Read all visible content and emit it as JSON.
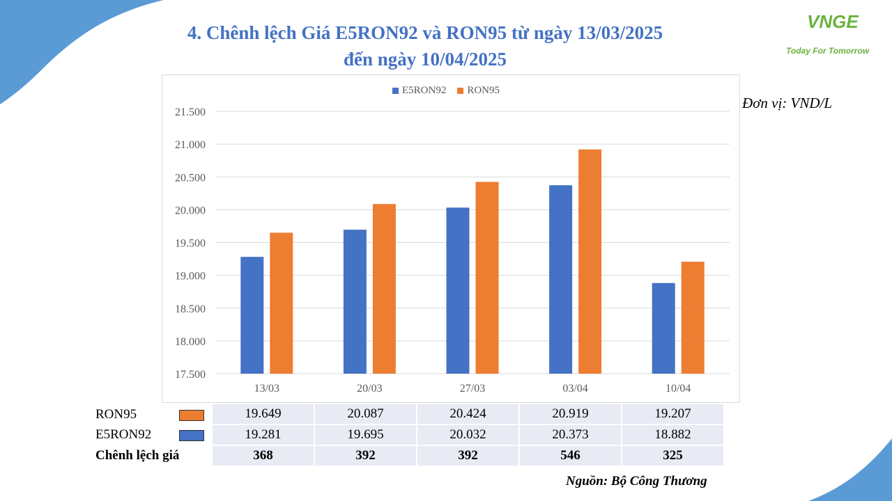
{
  "title": {
    "line1": "4. Chênh lệch Giá E5RON92 và RON95 từ ngày 13/03/2025",
    "line2": "đến ngày 10/04/2025"
  },
  "logo": {
    "mark": "VNGE",
    "tagline": "Today For Tomorrow"
  },
  "unit": "Đơn vị: VND/L",
  "source": "Nguồn: Bộ Công Thương",
  "colors": {
    "accent": "#4472c4",
    "e5": "#4472c4",
    "ron95": "#ed7d31",
    "logo": "#6ab33e",
    "deco": "#5b9bd5"
  },
  "chart_data": {
    "type": "bar",
    "categories": [
      "13/03",
      "20/03",
      "27/03",
      "03/04",
      "10/04"
    ],
    "series": [
      {
        "name": "E5RON92",
        "color": "#4472c4",
        "values": [
          19281,
          19695,
          20032,
          20373,
          18882
        ]
      },
      {
        "name": "RON95",
        "color": "#ed7d31",
        "values": [
          19649,
          20087,
          20424,
          20919,
          19207
        ]
      }
    ],
    "ylim": [
      17500,
      21500
    ],
    "yticks": [
      "17.500",
      "18.000",
      "18.500",
      "19.000",
      "19.500",
      "20.000",
      "20.500",
      "21.000",
      "21.500"
    ],
    "legend": [
      "E5RON92",
      "RON95"
    ],
    "legend_position": "top",
    "grid": true
  },
  "table": {
    "rows": [
      {
        "label": "RON95",
        "values": [
          "19.649",
          "20.087",
          "20.424",
          "20.919",
          "19.207"
        ]
      },
      {
        "label": "E5RON92",
        "values": [
          "19.281",
          "19.695",
          "20.032",
          "20.373",
          "18.882"
        ]
      },
      {
        "label": "Chênh lệch giá",
        "values": [
          "368",
          "392",
          "392",
          "546",
          "325"
        ]
      }
    ]
  }
}
